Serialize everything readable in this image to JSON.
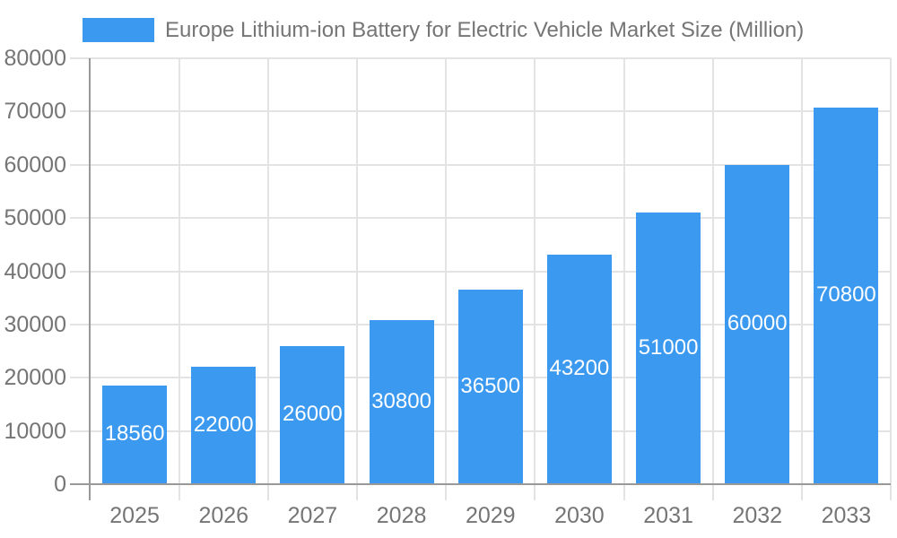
{
  "chart_data": {
    "type": "bar",
    "title": "Europe Lithium-ion Battery for Electric Vehicle Market Size (Million)",
    "categories": [
      "2025",
      "2026",
      "2027",
      "2028",
      "2029",
      "2030",
      "2031",
      "2032",
      "2033"
    ],
    "values": [
      18560,
      22000,
      26000,
      30800,
      36500,
      43200,
      51000,
      60000,
      70800
    ],
    "xlabel": "",
    "ylabel": "",
    "ylim": [
      0,
      80000
    ],
    "ytick_step": 10000,
    "yticks": [
      "0",
      "10000",
      "20000",
      "30000",
      "40000",
      "50000",
      "60000",
      "70000",
      "80000"
    ],
    "grid": true,
    "legend_position": "top-left",
    "colors": {
      "bar": "#3b99f0",
      "bar_value_text": "#ffffff",
      "grid": "#e3e3e3",
      "axis": "#999999",
      "tick_text": "#757575",
      "legend_text": "#757575",
      "background": "#ffffff"
    }
  }
}
